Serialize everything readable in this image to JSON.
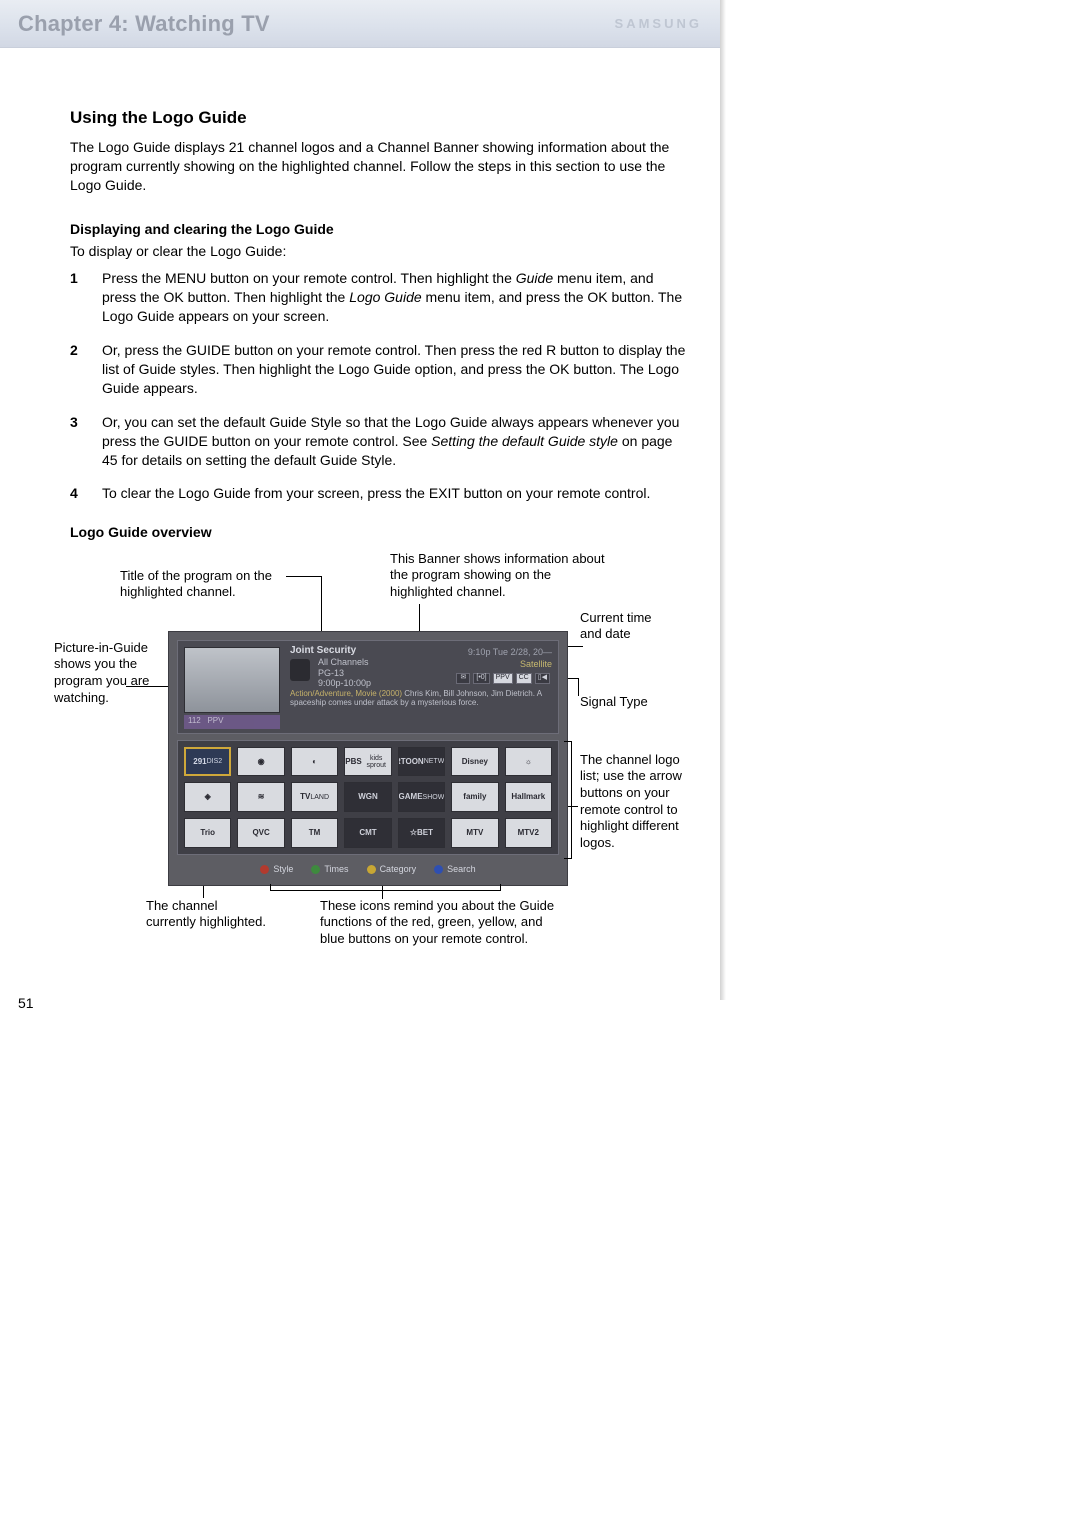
{
  "header": {
    "chapter": "Chapter 4: Watching TV",
    "brand": "SAMSUNG"
  },
  "section": {
    "title": "Using the Logo Guide",
    "intro": "The Logo Guide displays 21 channel logos and a Channel Banner showing information about the program currently showing on the highlighted channel. Follow the steps in this section to use the Logo Guide."
  },
  "subsection1": {
    "heading": "Displaying and clearing the Logo Guide",
    "lede": "To display or clear the Logo Guide:",
    "steps": [
      {
        "pre": "Press the MENU button on your remote control. Then highlight the ",
        "em1": "Guide",
        "mid": " menu item, and press the OK button. Then highlight the ",
        "em2": "Logo Guide",
        "post": " menu item, and press the OK button. The Logo Guide appears on your screen."
      },
      {
        "text": "Or, press the GUIDE button on your remote control. Then press the red R button to display the list of Guide styles. Then highlight the Logo Guide option, and press the OK button. The Logo Guide appears."
      },
      {
        "pre": "Or, you can set the default Guide Style so that the Logo Guide always appears whenever you press the GUIDE button on your remote control. See ",
        "em1": "Setting the default Guide style",
        "post": " on page 45 for details on setting the default Guide Style."
      },
      {
        "text": "To clear the Logo Guide from your screen, press the EXIT button on your remote control."
      }
    ]
  },
  "subsection2": {
    "heading": "Logo Guide overview"
  },
  "callouts": {
    "title": "Title of the program on the highlighted channel.",
    "banner": "This Banner shows information about the program showing on the highlighted channel.",
    "datetime": "Current time and date",
    "pip": "Picture-in-Guide shows you the program you are watching.",
    "signal": "Signal Type",
    "logolist": "The channel logo list; use the arrow buttons on your remote control to highlight different logos.",
    "highlighted": "The channel currently highlighted.",
    "legend": "These icons remind you about the Guide functions of the red, green, yellow, and blue buttons on your remote control."
  },
  "tv": {
    "banner": {
      "program_title": "Joint Security",
      "subtitle": "All Channels",
      "rating": "PG-13",
      "time_range": "9:00p-10:00p",
      "datetime": "9:10p Tue 2/28, 20—",
      "source": "Satellite",
      "badges": [
        "✉",
        "[•0]",
        "PPV",
        "CC",
        "▯◀"
      ],
      "desc_pre": "Action/Adventure, Movie (2000) ",
      "desc_hi": "Chris Kim, Bill Johnson, Jim Dietrich. A spaceship comes under attack by a mysterious force.",
      "pip_ch": "112",
      "pip_tag": "PPV"
    },
    "logos": [
      {
        "text": "291",
        "sub": "DIS2",
        "cls": "blue sel"
      },
      {
        "text": "◉",
        "cls": ""
      },
      {
        "text": "◐",
        "cls": ""
      },
      {
        "text": "PBS",
        "sub": "kids sprout",
        "cls": ""
      },
      {
        "text": "CARTOON",
        "sub": "NETWORK",
        "cls": "dark"
      },
      {
        "text": "Disney",
        "cls": ""
      },
      {
        "text": "☼",
        "cls": ""
      },
      {
        "text": "◈",
        "cls": ""
      },
      {
        "text": "≋",
        "cls": ""
      },
      {
        "text": "TV",
        "sub": "LAND",
        "cls": ""
      },
      {
        "text": "WGN",
        "cls": "dark"
      },
      {
        "text": "GAME",
        "sub": "SHOW",
        "cls": "dark"
      },
      {
        "text": "family",
        "cls": ""
      },
      {
        "text": "Hallmark",
        "cls": ""
      },
      {
        "text": "Trio",
        "cls": ""
      },
      {
        "text": "QVC",
        "cls": ""
      },
      {
        "text": "TM",
        "cls": ""
      },
      {
        "text": "CMT",
        "cls": "dark"
      },
      {
        "text": "☆BET",
        "cls": "dark"
      },
      {
        "text": "MTV",
        "cls": ""
      },
      {
        "text": "MTV2",
        "cls": ""
      }
    ],
    "legend": [
      {
        "color": "#b23a2e",
        "label": "Style"
      },
      {
        "color": "#3e8a3e",
        "label": "Times"
      },
      {
        "color": "#c8a734",
        "label": "Category"
      },
      {
        "color": "#2e4fb2",
        "label": "Search"
      }
    ]
  },
  "page_number": "51"
}
